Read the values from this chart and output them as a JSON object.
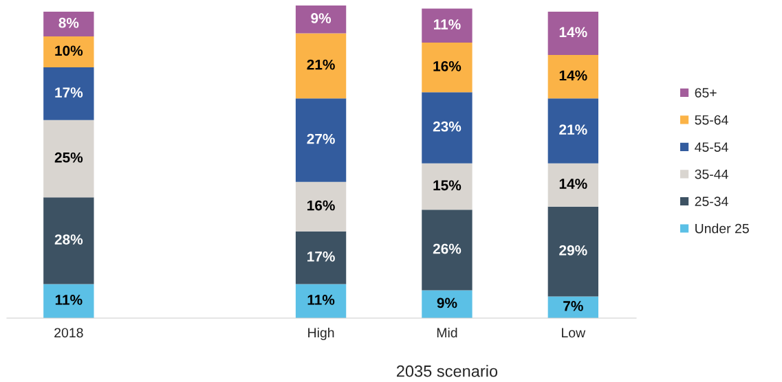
{
  "chart_data": {
    "type": "bar",
    "stacked": true,
    "relative": false,
    "xlabel": "2035 scenario",
    "legend": "right",
    "grid": false,
    "categories": [
      "2018",
      null,
      "High",
      "Mid",
      "Low"
    ],
    "series": [
      {
        "name": "Under 25",
        "color": "#5bc0e6",
        "values": [
          11,
          null,
          11,
          9,
          7
        ],
        "value_labels": [
          "11%",
          null,
          "11%",
          "9%",
          "7%"
        ]
      },
      {
        "name": "25-34",
        "color": "#3d5263",
        "values": [
          28,
          null,
          17,
          26,
          29
        ],
        "value_labels": [
          "28%",
          null,
          "17%",
          "26%",
          "29%"
        ]
      },
      {
        "name": "35-44",
        "color": "#d9d5d0",
        "values": [
          25,
          null,
          16,
          15,
          14
        ],
        "value_labels": [
          "25%",
          null,
          "16%",
          "15%",
          "14%"
        ]
      },
      {
        "name": "45-54",
        "color": "#335c9e",
        "values": [
          17,
          null,
          27,
          23,
          21
        ],
        "value_labels": [
          "17%",
          null,
          "27%",
          "23%",
          "21%"
        ]
      },
      {
        "name": "55-64",
        "color": "#fbb347",
        "values": [
          10,
          null,
          21,
          16,
          14
        ],
        "value_labels": [
          "10%",
          null,
          "21%",
          "16%",
          "14%"
        ]
      },
      {
        "name": "65+",
        "color": "#a35d9b",
        "values": [
          8,
          null,
          9,
          11,
          14
        ],
        "value_labels": [
          "8%",
          null,
          "9%",
          "11%",
          "14%"
        ]
      }
    ]
  }
}
